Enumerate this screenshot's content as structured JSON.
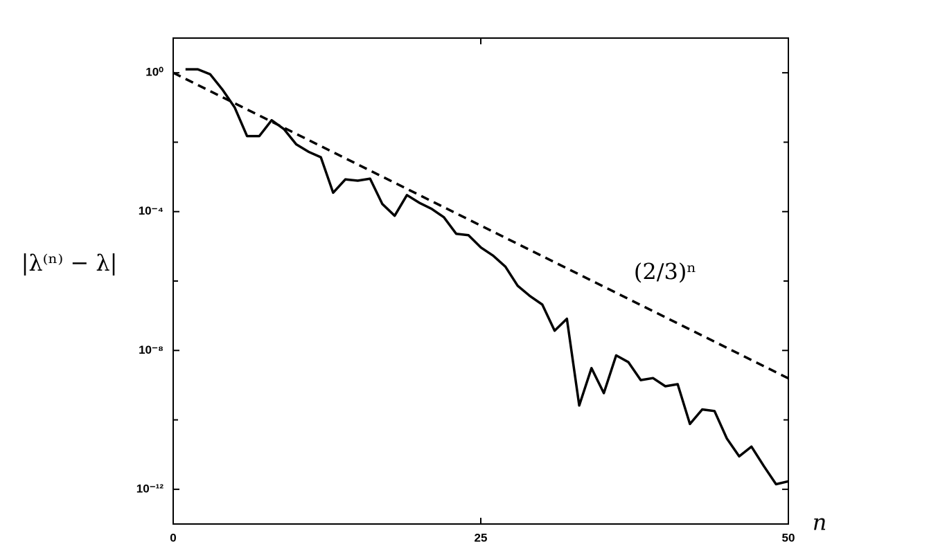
{
  "chart_data": {
    "type": "line",
    "log_y": true,
    "y_label": "|λ⁽ⁿ⁾ − λ|",
    "x_label": "n",
    "annotation": "(2/3)ⁿ",
    "xlim": [
      0,
      50
    ],
    "xticks": [
      0,
      25,
      50
    ],
    "ylim": [
      1e-13,
      10
    ],
    "yticks": [
      {
        "value": 1,
        "label": "10⁰"
      },
      {
        "value": 0.0001,
        "label": "10⁻⁴"
      },
      {
        "value": 1e-08,
        "label": "10⁻⁸"
      },
      {
        "value": 1e-12,
        "label": "10⁻¹²"
      }
    ],
    "minor_yticks": [
      0.01,
      1e-06,
      1e-10
    ],
    "series": [
      {
        "color": "#000000",
        "style": "solid",
        "x": [
          1,
          2,
          3,
          4,
          5,
          6,
          7,
          8,
          9,
          10,
          11,
          12,
          13,
          14,
          15,
          16,
          17,
          18,
          19,
          20,
          21,
          22,
          23,
          24,
          25,
          26,
          27,
          28,
          29,
          30,
          31,
          32,
          33,
          34,
          35,
          36,
          37,
          38,
          39,
          40,
          41,
          42,
          43,
          44,
          45,
          46,
          47,
          48,
          49,
          50
        ],
        "values": [
          1.26,
          1.26,
          0.91,
          0.33,
          0.1,
          0.015,
          0.015,
          0.043,
          0.024,
          0.0087,
          0.0053,
          0.0037,
          0.00035,
          0.00085,
          0.00078,
          0.00089,
          0.000166,
          7.6e-05,
          0.0003,
          0.00018,
          0.00012,
          6.9e-05,
          2.3e-05,
          2.1e-05,
          9.3e-06,
          5.4e-06,
          2.6e-06,
          7.3e-07,
          3.7e-07,
          2.1e-07,
          3.7e-08,
          8.2e-08,
          2.6e-10,
          3.1e-09,
          5.9e-10,
          7.2e-09,
          4.6e-09,
          1.4e-09,
          1.6e-09,
          9.3e-10,
          1.07e-09,
          7.6e-11,
          2e-10,
          1.8e-10,
          2.9e-11,
          8.9e-12,
          1.7e-11,
          4.7e-12,
          1.4e-12,
          1.7e-12
        ]
      },
      {
        "color": "#000000",
        "style": "dashed",
        "x": [
          0,
          50
        ],
        "values": [
          1,
          1.57e-09
        ]
      }
    ]
  }
}
